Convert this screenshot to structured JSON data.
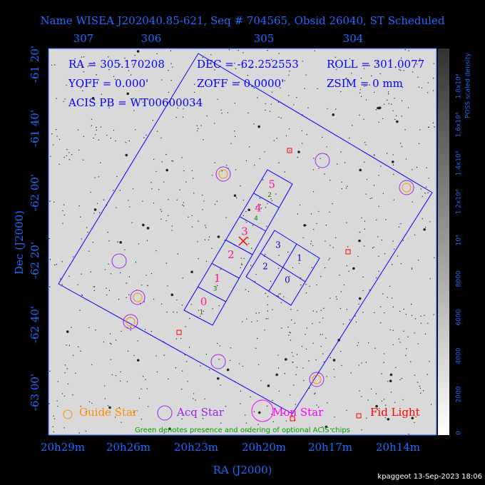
{
  "header": {
    "title": "Name WISEA J202040.85-621, Seq # 704565, Obsid 26040, ST Scheduled"
  },
  "axes": {
    "top_ticks": [
      "307",
      "306",
      "305",
      "304"
    ],
    "left_ticks": [
      "-61 20'",
      "-61 40'",
      "-62 00'",
      "-62 20'",
      "-62 40'",
      "-63 00'"
    ],
    "bottom_ticks": [
      "20h29m",
      "20h26m",
      "20h23m",
      "20h20m",
      "20h17m",
      "20h14m"
    ],
    "x_label": "RA (J2000)",
    "y_label": "Dec (J2000)"
  },
  "info": [
    "RA = 305.170208",
    "DEC = -62.252553",
    "ROLL = 301.0077",
    "YOFF = 0.000'",
    "ZOFF = 0.0000'",
    "ZSIM = 0 mm",
    "ACIS PB = WT00600034"
  ],
  "chips": {
    "s_names": [
      "0",
      "1",
      "2",
      "3",
      "4",
      "5"
    ],
    "s_order": [
      "1",
      "3",
      "",
      "",
      "4",
      "2"
    ],
    "i_names": [
      "0",
      "1",
      "2",
      "3"
    ]
  },
  "legend": [
    "Guide Star",
    "Acq Star",
    "Mon Star",
    "Fid Light"
  ],
  "note": "Green denotes presence and ordering of optional ACIS chips",
  "colorbar": {
    "label": "POSS scaled density",
    "ticks": [
      "0",
      "2000",
      "4000",
      "6000",
      "8000",
      "10⁴",
      "1.2x10⁴",
      "1.4x10⁴",
      "1.6x10⁴",
      "1.8x10⁴"
    ]
  },
  "footer": "kpaggeot 13-Sep-2023 18:06"
}
